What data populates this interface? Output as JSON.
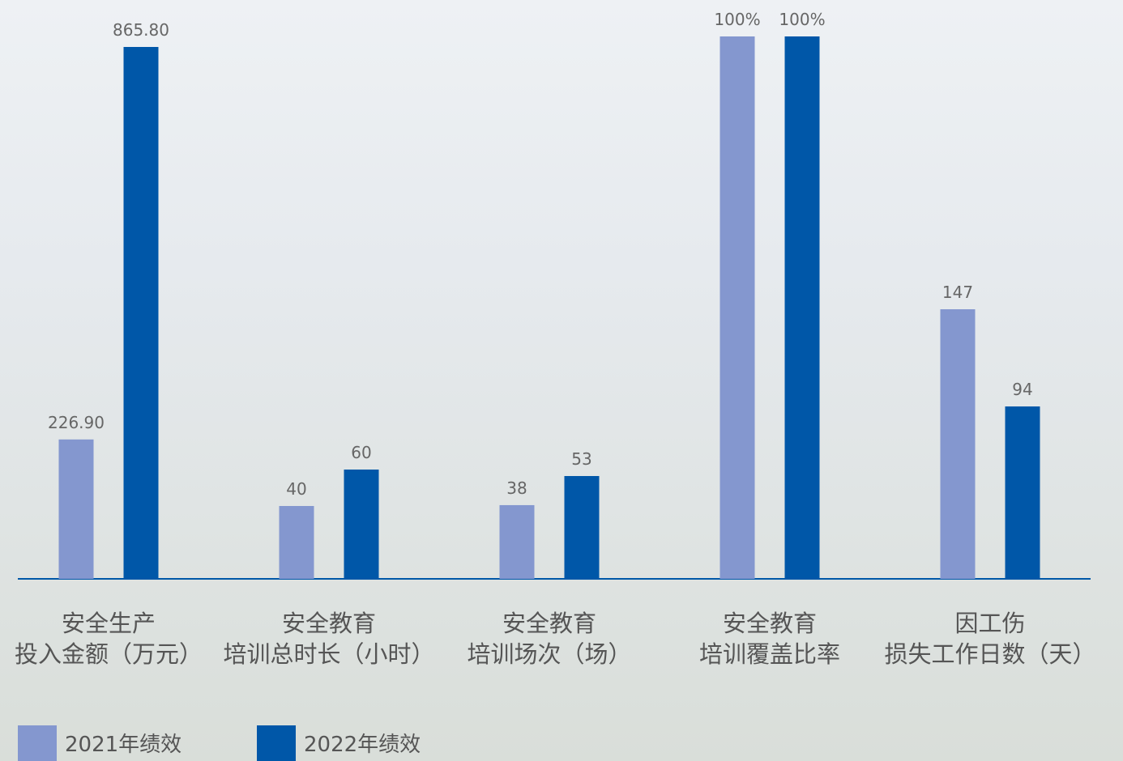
{
  "chart_data": {
    "type": "bar",
    "categories": [
      [
        "安全生产",
        "投入金额（万元）"
      ],
      [
        "安全教育",
        "培训总时长（小时）"
      ],
      [
        "安全教育",
        "培训场次（场）"
      ],
      [
        "安全教育",
        "培训覆盖比率"
      ],
      [
        "因工伤",
        "损失工作日数（天）"
      ]
    ],
    "series": [
      {
        "name": "2021年绩效",
        "color": "#8497cf",
        "values": [
          226.9,
          40,
          38,
          100,
          147
        ],
        "value_labels": [
          "226.90",
          "40",
          "38",
          "100%",
          "147"
        ]
      },
      {
        "name": "2022年绩效",
        "color": "#0057a8",
        "values": [
          865.8,
          60,
          53,
          100,
          94
        ],
        "value_labels": [
          "865.80",
          "60",
          "53",
          "100%",
          "94"
        ]
      }
    ]
  }
}
